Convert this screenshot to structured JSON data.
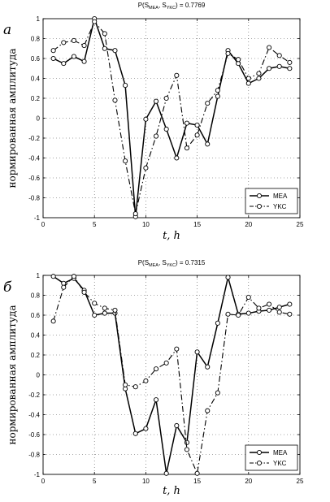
{
  "chart_data": [
    {
      "type": "line",
      "panel_label": "a",
      "title": {
        "prefix": "P(S",
        "s1": "MEA",
        "mid": ", S",
        "s2": "YKC",
        "suffix": ") = 0.7769"
      },
      "xlabel": {
        "t": "t",
        "rest": ", h"
      },
      "ylabel": "нормированная амплитуда",
      "xlim": [
        0,
        25
      ],
      "ylim": [
        -1,
        1
      ],
      "xticks": [
        "0",
        "5",
        "10",
        "15",
        "20",
        "25"
      ],
      "yticks": [
        "-1",
        "-0.8",
        "-0.6",
        "-0.4",
        "-0.2",
        "0",
        "0.2",
        "0.4",
        "0.6",
        "0.8",
        "1"
      ],
      "grid": true,
      "legend_position": "lower-right",
      "series": [
        {
          "name": "MEA",
          "style": "solid",
          "x": [
            1,
            2,
            3,
            4,
            5,
            6,
            7,
            8,
            9,
            10,
            11,
            12,
            13,
            14,
            15,
            16,
            17,
            18,
            19,
            20,
            21,
            22,
            23,
            24
          ],
          "y": [
            0.6,
            0.55,
            0.62,
            0.57,
            1.0,
            0.7,
            0.68,
            0.33,
            -0.99,
            -0.01,
            0.17,
            -0.11,
            -0.4,
            -0.05,
            -0.07,
            -0.26,
            0.22,
            0.68,
            0.55,
            0.35,
            0.4,
            0.5,
            0.52,
            0.5
          ]
        },
        {
          "name": "YKC",
          "style": "dashdot",
          "x": [
            1,
            2,
            3,
            4,
            5,
            6,
            7,
            8,
            9,
            10,
            11,
            12,
            13,
            14,
            15,
            16,
            17,
            18,
            19,
            20,
            21,
            22,
            23,
            24
          ],
          "y": [
            0.68,
            0.76,
            0.78,
            0.73,
            0.97,
            0.85,
            0.18,
            -0.43,
            -0.96,
            -0.5,
            -0.18,
            0.2,
            0.43,
            -0.3,
            -0.17,
            0.15,
            0.28,
            0.65,
            0.59,
            0.4,
            0.45,
            0.71,
            0.63,
            0.56
          ]
        }
      ]
    },
    {
      "type": "line",
      "panel_label": "б",
      "title": {
        "prefix": "P(S",
        "s1": "MEA",
        "mid": ", S",
        "s2": "YKC",
        "suffix": ") = 0.7315"
      },
      "xlabel": {
        "t": "t",
        "rest": ", h"
      },
      "ylabel": "нормированная амплитуда",
      "xlim": [
        0,
        25
      ],
      "ylim": [
        -1,
        1
      ],
      "xticks": [
        "0",
        "5",
        "10",
        "15",
        "20",
        "25"
      ],
      "yticks": [
        "-1",
        "-0.8",
        "-0.6",
        "-0.4",
        "-0.2",
        "0",
        "0.2",
        "0.4",
        "0.6",
        "0.8",
        "1"
      ],
      "grid": true,
      "legend_position": "lower-right",
      "series": [
        {
          "name": "MEA",
          "style": "solid",
          "x": [
            1,
            2,
            3,
            4,
            5,
            6,
            7,
            8,
            9,
            10,
            11,
            12,
            13,
            14,
            15,
            16,
            17,
            18,
            19,
            20,
            21,
            22,
            23,
            24
          ],
          "y": [
            0.99,
            0.92,
            0.97,
            0.85,
            0.6,
            0.62,
            0.62,
            -0.14,
            -0.59,
            -0.54,
            -0.25,
            -0.99,
            -0.51,
            -0.68,
            0.23,
            0.08,
            0.52,
            0.98,
            0.61,
            0.62,
            0.64,
            0.65,
            0.68,
            0.71
          ]
        },
        {
          "name": "YKC",
          "style": "dashdot",
          "x": [
            1,
            2,
            3,
            4,
            5,
            6,
            7,
            8,
            9,
            10,
            11,
            12,
            13,
            14,
            15,
            16,
            17,
            18,
            19,
            20,
            21,
            22,
            23,
            24
          ],
          "y": [
            0.54,
            0.88,
            0.99,
            0.83,
            0.72,
            0.67,
            0.65,
            -0.1,
            -0.12,
            -0.06,
            0.06,
            0.12,
            0.26,
            -0.75,
            -0.99,
            -0.36,
            -0.18,
            0.61,
            0.6,
            0.78,
            0.67,
            0.71,
            0.63,
            0.61
          ]
        }
      ]
    }
  ]
}
